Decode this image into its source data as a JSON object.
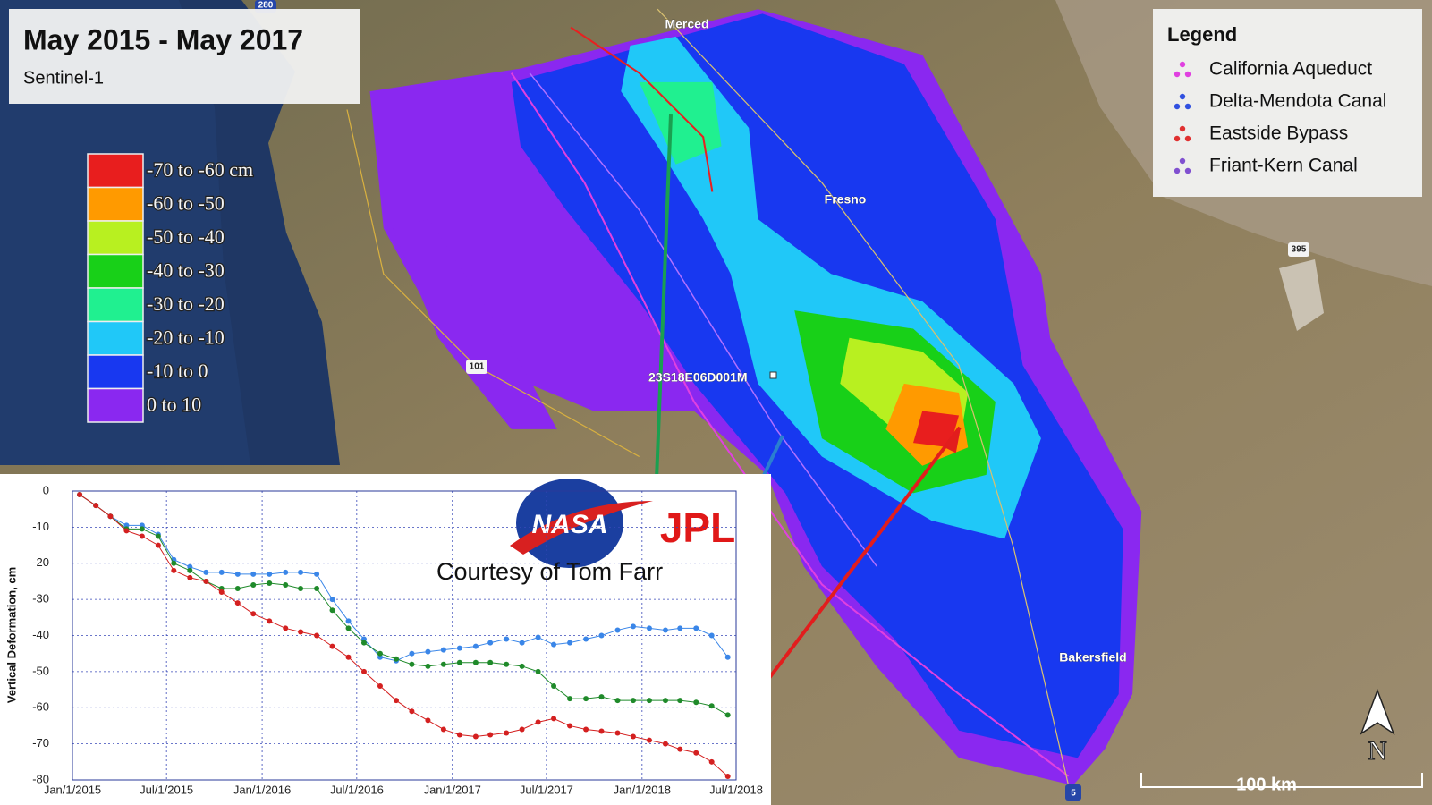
{
  "map": {
    "title": "May 2015 - May 2017",
    "subtitle": "Sentinel-1",
    "color_scale": [
      {
        "label": "-70 to -60 cm",
        "color": "#e81e1e"
      },
      {
        "label": "-60 to -50",
        "color": "#ff9a00"
      },
      {
        "label": "-50 to -40",
        "color": "#b8f020"
      },
      {
        "label": "-40 to -30",
        "color": "#18d018"
      },
      {
        "label": "-30 to -20",
        "color": "#20f090"
      },
      {
        "label": "-20 to -10",
        "color": "#20c8f8"
      },
      {
        "label": "-10 to 0",
        "color": "#1838f0"
      },
      {
        "label": "0 to 10",
        "color": "#8a28f0"
      }
    ],
    "legend": {
      "title": "Legend",
      "items": [
        {
          "name": "California Aqueduct",
          "color": "#e040e0"
        },
        {
          "name": "Delta-Mendota Canal",
          "color": "#3050e0"
        },
        {
          "name": "Eastside Bypass",
          "color": "#e03030"
        },
        {
          "name": "Friant-Kern Canal",
          "color": "#8050d0"
        }
      ]
    },
    "places": [
      "Merced",
      "Fresno",
      "Bakersfield"
    ],
    "well": "23S18E06D001M",
    "shields": [
      "101",
      "395",
      "5",
      "280"
    ],
    "scale_bar": "100 km",
    "north": "N"
  },
  "chart_data": {
    "type": "line",
    "y_label": "Vertical Deformation, cm",
    "credit": "Courtesy of Tom Farr",
    "logos": [
      "NASA",
      "JPL"
    ],
    "x": [
      "2015-01-15",
      "2015-02-15",
      "2015-03-15",
      "2015-04-15",
      "2015-05-15",
      "2015-06-15",
      "2015-07-15",
      "2015-08-15",
      "2015-09-15",
      "2015-10-15",
      "2015-11-15",
      "2015-12-15",
      "2016-01-15",
      "2016-02-15",
      "2016-03-15",
      "2016-04-15",
      "2016-05-15",
      "2016-06-15",
      "2016-07-15",
      "2016-08-15",
      "2016-09-15",
      "2016-10-15",
      "2016-11-15",
      "2016-12-15",
      "2017-01-15",
      "2017-02-15",
      "2017-03-15",
      "2017-04-15",
      "2017-05-15",
      "2017-06-15",
      "2017-07-15",
      "2017-08-15",
      "2017-09-15",
      "2017-10-15",
      "2017-11-15",
      "2017-12-15",
      "2018-01-15",
      "2018-02-15",
      "2018-03-15",
      "2018-04-15",
      "2018-05-15",
      "2018-06-15"
    ],
    "series": [
      {
        "color": "#3a86e8",
        "values": [
          -1,
          -4,
          -7,
          -9.5,
          -9.5,
          -12,
          -19,
          -21,
          -22.5,
          -22.5,
          -23,
          -23,
          -23,
          -22.5,
          -22.5,
          -23,
          -30,
          -36,
          -41,
          -46,
          -47,
          -45,
          -44.5,
          -44,
          -43.5,
          -43,
          -42,
          -41,
          -42,
          -40.5,
          -42.5,
          -42,
          -41,
          -40,
          -38.5,
          -37.5,
          -38,
          -38.5,
          -38,
          -38,
          -40,
          -46
        ]
      },
      {
        "color": "#1f8a2a",
        "values": [
          -1,
          -4,
          -7,
          -10.5,
          -10.5,
          -12.5,
          -20,
          -22,
          -25,
          -27,
          -27,
          -26,
          -25.5,
          -26,
          -27,
          -27,
          -33,
          -38,
          -42,
          -45,
          -46.5,
          -48,
          -48.5,
          -48,
          -47.5,
          -47.5,
          -47.5,
          -48,
          -48.5,
          -50,
          -54,
          -57.5,
          -57.5,
          -57,
          -58,
          -58,
          -58,
          -58,
          -58,
          -58.5,
          -59.5,
          -62
        ]
      },
      {
        "color": "#d42020",
        "values": [
          -1,
          -4,
          -7,
          -11,
          -12.5,
          -15,
          -22,
          -24,
          -25,
          -28,
          -31,
          -34,
          -36,
          -38,
          -39,
          -40,
          -43,
          -46,
          -50,
          -54,
          -58,
          -61,
          -63.5,
          -66,
          -67.5,
          -68,
          -67.5,
          -67,
          -66,
          -64,
          -63,
          -65,
          -66,
          -66.5,
          -67,
          -68,
          -69,
          -70,
          -71.5,
          -72.5,
          -75,
          -79
        ]
      }
    ],
    "xlim": [
      "2015-01-01",
      "2018-07-01"
    ],
    "xticks": [
      {
        "value": "2015-01-01",
        "label": "Jan/1/2015"
      },
      {
        "value": "2015-07-01",
        "label": "Jul/1/2015"
      },
      {
        "value": "2016-01-01",
        "label": "Jan/1/2016"
      },
      {
        "value": "2016-07-01",
        "label": "Jul/1/2016"
      },
      {
        "value": "2017-01-01",
        "label": "Jan/1/2017"
      },
      {
        "value": "2017-07-01",
        "label": "Jul/1/2017"
      },
      {
        "value": "2018-01-01",
        "label": "Jan/1/2018"
      },
      {
        "value": "2018-07-01",
        "label": "Jul/1/2018"
      }
    ],
    "ylim": [
      -80,
      0
    ],
    "yticks": [
      0,
      -10,
      -20,
      -30,
      -40,
      -50,
      -60,
      -70,
      -80
    ],
    "grid": true
  }
}
